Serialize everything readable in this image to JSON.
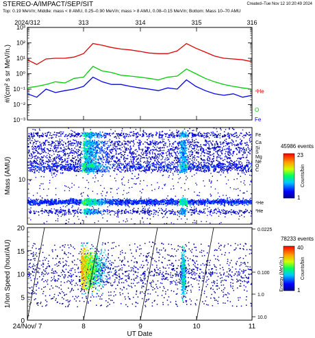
{
  "header": {
    "title": "STEREO-A/IMPACT/SEP/SIT",
    "created": "Created–Tue Nov 12 10:20:49 2024",
    "subtitle": "Top: 0.19 MeV/n; Middle: mass < 8 AMU, 0.25–0.90 MeV/n; mass > 8 AMU, 0.08–0.15 MeV/n; Bottom: Mass 10–70 AMU",
    "top_dates": [
      "2024/312",
      "313",
      "314",
      "315",
      "316"
    ]
  },
  "colors": {
    "he": "#e00000",
    "o": "#00cc00",
    "fe": "#0000ee",
    "frame": "#000000"
  },
  "chart_data": [
    {
      "type": "line",
      "ylabel": "#/(cm² s sr MeV/n.)",
      "yscale": "log",
      "ylim": [
        0.001,
        1000
      ],
      "yticks": [
        "10⁻³",
        "10⁻²",
        "10⁻¹",
        "10⁰",
        "10¹",
        "10²",
        "10³"
      ],
      "x_start": "2024-11-07",
      "x_end": "2024-11-11",
      "series": [
        {
          "name": "⁴He",
          "x": [
            "11-07 00h",
            "11-07 04h",
            "11-07 08h",
            "11-07 12h",
            "11-07 16h",
            "11-07 20h",
            "11-08 00h",
            "11-08 04h",
            "11-08 08h",
            "11-08 12h",
            "11-08 16h",
            "11-08 20h",
            "11-09 00h",
            "11-09 04h",
            "11-09 08h",
            "11-09 12h",
            "11-09 16h",
            "11-09 20h",
            "11-10 00h",
            "11-10 04h",
            "11-10 08h",
            "11-10 12h",
            "11-10 16h",
            "11-10 20h",
            "11-11 00h"
          ],
          "values": [
            8,
            4,
            9,
            10,
            10,
            12,
            20,
            90,
            70,
            50,
            40,
            35,
            28,
            22,
            20,
            20,
            30,
            90,
            45,
            25,
            14,
            10,
            9,
            8,
            6
          ]
        },
        {
          "name": "O",
          "x": [
            "11-07 00h",
            "11-07 04h",
            "11-07 08h",
            "11-07 12h",
            "11-07 16h",
            "11-07 20h",
            "11-08 00h",
            "11-08 04h",
            "11-08 08h",
            "11-08 12h",
            "11-08 16h",
            "11-08 20h",
            "11-09 00h",
            "11-09 04h",
            "11-09 08h",
            "11-09 12h",
            "11-09 16h",
            "11-09 20h",
            "11-10 00h",
            "11-10 04h",
            "11-10 08h",
            "11-10 12h",
            "11-10 16h",
            "11-10 20h",
            "11-11 00h"
          ],
          "values": [
            0.12,
            0.15,
            0.2,
            0.3,
            0.25,
            0.5,
            0.6,
            3,
            1.5,
            1.2,
            0.8,
            0.7,
            0.6,
            0.5,
            0.4,
            0.6,
            0.7,
            2,
            1,
            0.5,
            0.3,
            0.2,
            0.15,
            0.12,
            0.1
          ]
        },
        {
          "name": "Fe",
          "x": [
            "11-07 00h",
            "11-07 04h",
            "11-07 08h",
            "11-07 12h",
            "11-07 16h",
            "11-07 20h",
            "11-08 00h",
            "11-08 04h",
            "11-08 08h",
            "11-08 12h",
            "11-08 16h",
            "11-08 20h",
            "11-09 00h",
            "11-09 04h",
            "11-09 08h",
            "11-09 12h",
            "11-09 16h",
            "11-09 20h",
            "11-10 00h",
            "11-10 04h",
            "11-10 08h",
            "11-10 12h",
            "11-10 16h",
            "11-10 20h",
            "11-11 00h"
          ],
          "values": [
            0.05,
            0.03,
            0.1,
            0.06,
            0.08,
            0.1,
            0.15,
            0.6,
            0.3,
            0.2,
            0.2,
            0.15,
            0.12,
            0.1,
            0.08,
            0.12,
            0.1,
            0.4,
            0.15,
            0.08,
            0.05,
            0.04,
            0.05,
            0.03,
            0.04
          ]
        }
      ]
    },
    {
      "type": "scatter",
      "ylabel": "Mass (AMU)",
      "yscale": "log",
      "yticks": [
        "10"
      ],
      "species_labels": [
        "Fe",
        "Ca",
        "Si",
        "S",
        "Mg",
        "Ne",
        "O",
        "C",
        "⁴He",
        "³He"
      ],
      "colorbar": {
        "title": "45986 events",
        "label": "Counts/bin",
        "max": "23",
        "min": "1"
      }
    },
    {
      "type": "scatter",
      "ylabel": "1/Ion Speed (hour/AU)",
      "xlabel": "UT Date",
      "ylim": [
        0,
        20
      ],
      "yticks": [
        "0",
        "5",
        "10",
        "15",
        "20"
      ],
      "xticks": [
        "24/Nov/ 7",
        "8",
        "9",
        "10",
        "11"
      ],
      "right_axis": {
        "label": "Energy (MeV/n.)",
        "ticks": [
          "0.0225",
          "0.100",
          "1.0",
          "10.0"
        ]
      },
      "colorbar": {
        "title": "78233 events",
        "label": "Counts/bin",
        "max": "40",
        "min": "1"
      }
    }
  ]
}
